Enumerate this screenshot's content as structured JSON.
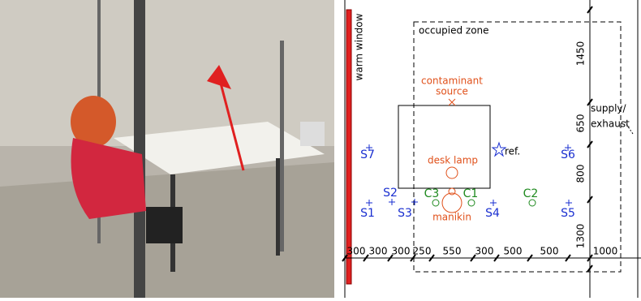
{
  "diagram": {
    "window_label": "warm window",
    "zone_label": "occupied zone",
    "source_label": [
      "contaminant",
      "source"
    ],
    "supply_label": [
      "supply/",
      "exhaust"
    ],
    "lamp_label": "desk lamp",
    "ref_label": "ref.",
    "manikin_label": "manikin",
    "sensors": [
      "S1",
      "S2",
      "S3",
      "S4",
      "S5",
      "S6",
      "S7"
    ],
    "cameras": [
      "C1",
      "C2",
      "C3"
    ],
    "vertical_dims": [
      "1450",
      "650",
      "800",
      "1300"
    ],
    "horizontal_dims": [
      "300",
      "300",
      "300",
      "250",
      "550",
      "300",
      "500",
      "500",
      "1000"
    ]
  }
}
